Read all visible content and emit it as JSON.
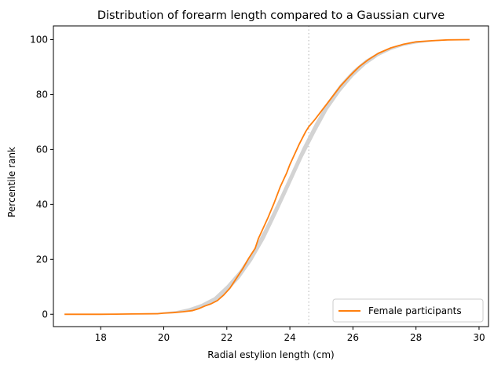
{
  "chart_data": {
    "type": "line",
    "title": "Distribution of forearm length compared to a Gaussian curve",
    "xlabel": "Radial estylion length (cm)",
    "ylabel": "Percentile rank",
    "xlim": [
      16.5,
      30.3
    ],
    "ylim": [
      -4.5,
      105
    ],
    "xticks": [
      18,
      20,
      22,
      24,
      26,
      28,
      30
    ],
    "yticks": [
      0,
      20,
      40,
      60,
      80,
      100
    ],
    "grid": false,
    "legend_position": "lower right",
    "reference_line": {
      "x": 24.6,
      "style": "dotted",
      "color": "#cccccc"
    },
    "gaussian_band": {
      "color": "#d3d3d3",
      "x": [
        16.85,
        18.0,
        19.0,
        19.8,
        20.4,
        20.8,
        21.2,
        21.6,
        22.0,
        22.4,
        22.8,
        23.2,
        23.6,
        24.0,
        24.4,
        24.8,
        25.2,
        25.6,
        26.0,
        26.4,
        26.8,
        27.2,
        27.6,
        28.0,
        28.5,
        29.0,
        29.7
      ],
      "lower": [
        0,
        0,
        0,
        0.1,
        0.5,
        1.2,
        2.5,
        4.5,
        8.0,
        13.0,
        19.5,
        27.5,
        37.0,
        47.0,
        57.0,
        66.0,
        74.5,
        81.0,
        86.5,
        90.8,
        94.0,
        96.2,
        97.7,
        98.6,
        99.3,
        99.7,
        100
      ],
      "upper": [
        0,
        0,
        0.1,
        0.5,
        1.2,
        2.2,
        3.8,
        6.2,
        10.5,
        15.8,
        22.5,
        31.0,
        40.5,
        50.5,
        60.5,
        69.5,
        77.5,
        83.8,
        88.8,
        92.6,
        95.3,
        97.2,
        98.4,
        99.1,
        99.6,
        99.9,
        100
      ]
    },
    "series": [
      {
        "name": "Female participants",
        "color": "#ff7f0e",
        "x": [
          16.85,
          17.5,
          18.0,
          18.5,
          19.0,
          19.5,
          19.8,
          20.0,
          20.3,
          20.6,
          20.9,
          21.1,
          21.3,
          21.5,
          21.7,
          21.9,
          22.1,
          22.3,
          22.5,
          22.7,
          22.9,
          23.0,
          23.1,
          23.3,
          23.5,
          23.7,
          23.9,
          24.0,
          24.1,
          24.3,
          24.5,
          24.6,
          24.8,
          25.0,
          25.3,
          25.6,
          25.9,
          26.2,
          26.5,
          26.8,
          27.2,
          27.6,
          28.0,
          28.5,
          29.0,
          29.7
        ],
        "y": [
          0,
          0,
          0,
          0.05,
          0.1,
          0.15,
          0.2,
          0.4,
          0.6,
          0.9,
          1.3,
          2.0,
          3.0,
          3.8,
          5.0,
          7.0,
          9.5,
          13.0,
          16.5,
          20.5,
          24.0,
          27.5,
          30.0,
          35.0,
          40.5,
          46.5,
          51.5,
          54.5,
          57.0,
          62.0,
          66.5,
          68.3,
          71.0,
          74.0,
          78.5,
          83.0,
          86.8,
          90.2,
          92.8,
          95.0,
          97.0,
          98.3,
          99.2,
          99.6,
          99.9,
          100
        ]
      }
    ]
  }
}
